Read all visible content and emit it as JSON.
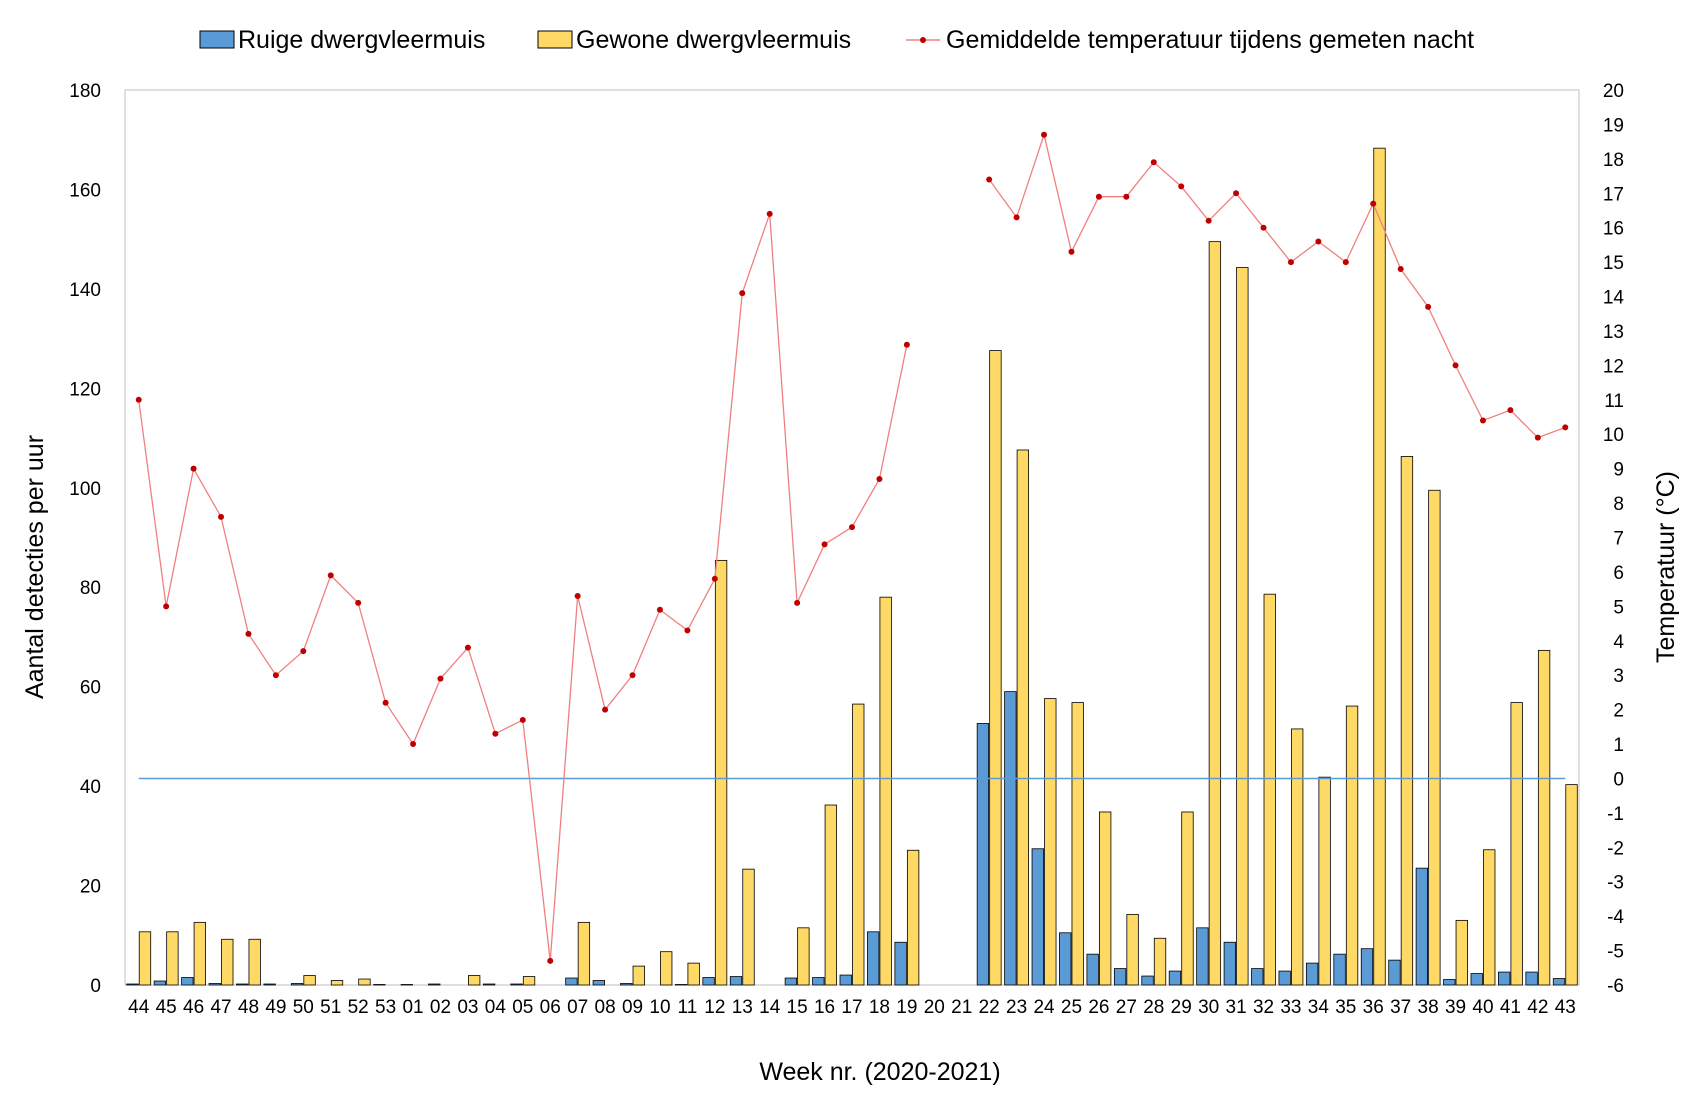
{
  "chart_data": {
    "type": "bar",
    "weeks": [
      "44",
      "45",
      "46",
      "47",
      "48",
      "49",
      "50",
      "51",
      "52",
      "53",
      "01",
      "02",
      "03",
      "04",
      "05",
      "06",
      "07",
      "08",
      "09",
      "10",
      "11",
      "12",
      "13",
      "14",
      "15",
      "16",
      "17",
      "18",
      "19",
      "20",
      "21",
      "22",
      "23",
      "24",
      "25",
      "26",
      "27",
      "28",
      "29",
      "30",
      "31",
      "32",
      "33",
      "34",
      "35",
      "36",
      "37",
      "38",
      "39",
      "40",
      "41",
      "42",
      "43"
    ],
    "series": [
      {
        "name": "Ruige dwergvleermuis",
        "kind": "bar",
        "color": "#5b9bd5",
        "axis": "left",
        "values": [
          0.2,
          0.8,
          1.5,
          0.3,
          0.2,
          0.2,
          0.3,
          0,
          0,
          0.1,
          0.1,
          0.2,
          0,
          0.2,
          0.2,
          0,
          1.4,
          0.9,
          0.3,
          0,
          0.1,
          1.5,
          1.7,
          0,
          1.4,
          1.5,
          2,
          10.7,
          8.6,
          0,
          0,
          52.6,
          59,
          27.4,
          10.5,
          6.2,
          3.3,
          1.8,
          2.8,
          11.5,
          8.6,
          3.3,
          2.8,
          4.4,
          6.2,
          7.3,
          5,
          23.5,
          1.1,
          2.3,
          2.6,
          2.6,
          1.3
        ]
      },
      {
        "name": "Gewone dwergvleermuis",
        "kind": "bar",
        "color": "#ffd966",
        "axis": "left",
        "values": [
          10.7,
          10.7,
          12.6,
          9.2,
          9.2,
          0,
          1.9,
          0.9,
          1.2,
          0,
          0,
          0,
          1.9,
          0,
          1.7,
          0,
          12.6,
          0,
          3.8,
          6.7,
          4.4,
          85.4,
          23.3,
          0,
          11.5,
          36.2,
          56.5,
          78,
          27.1,
          0,
          0,
          127.6,
          107.6,
          57.6,
          56.8,
          34.8,
          14.2,
          9.4,
          34.8,
          149.5,
          144.3,
          78.6,
          51.5,
          41.8,
          56.1,
          168.3,
          106.3,
          99.5,
          13,
          27.2,
          56.8,
          67.3,
          40.3
        ]
      },
      {
        "name": "Gemiddelde temperatuur tijdens gemeten nacht",
        "kind": "line",
        "color": "#f08080",
        "marker_color": "#c00000",
        "axis": "right",
        "values": [
          11,
          5,
          9,
          7.6,
          4.2,
          3,
          3.7,
          5.9,
          5.1,
          2.2,
          1,
          2.9,
          3.8,
          1.3,
          1.7,
          -5.3,
          5.3,
          2,
          3,
          4.9,
          4.3,
          5.8,
          14.1,
          16.4,
          5.1,
          6.8,
          7.3,
          8.7,
          12.6,
          null,
          null,
          17.4,
          16.3,
          18.7,
          15.3,
          16.9,
          16.9,
          17.9,
          17.2,
          16.2,
          17,
          16,
          15,
          15.6,
          15,
          16.7,
          14.8,
          13.7,
          12,
          10.4,
          10.7,
          9.9,
          10.2
        ]
      }
    ],
    "reference_line": {
      "value": 0,
      "axis": "right",
      "color": "#5b9bd5"
    },
    "xlabel": "Week nr. (2020-2021)",
    "ylabel_left": "Aantal detecties per uur",
    "ylabel_right": "Temperatuur (°C)",
    "ylim_left": [
      0,
      180
    ],
    "yticks_left": [
      0,
      20,
      40,
      60,
      80,
      100,
      120,
      140,
      160,
      180
    ],
    "ylim_right": [
      -6,
      20
    ],
    "yticks_right": [
      -6,
      -5,
      -4,
      -3,
      -2,
      -1,
      0,
      1,
      2,
      3,
      4,
      5,
      6,
      7,
      8,
      9,
      10,
      11,
      12,
      13,
      14,
      15,
      16,
      17,
      18,
      19,
      20
    ],
    "grid": false,
    "legend_position": "top"
  }
}
